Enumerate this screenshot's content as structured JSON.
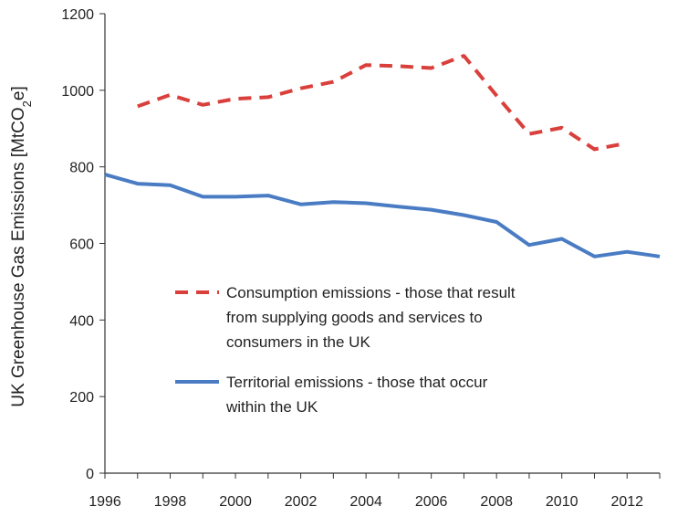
{
  "chart_data": {
    "type": "line",
    "ylabel": "UK Greenhouse Gas Emissions [MtCO",
    "ylabel_sub": "2",
    "ylabel_tail": "e]",
    "xlim": [
      1996,
      2013
    ],
    "ylim": [
      0,
      1200
    ],
    "xticks": [
      "1996",
      "1998",
      "2000",
      "2002",
      "2004",
      "2006",
      "2008",
      "2010",
      "2012"
    ],
    "yticks": [
      "0",
      "200",
      "400",
      "600",
      "800",
      "1000",
      "1200"
    ],
    "grid": false,
    "legend_position": "center",
    "series": [
      {
        "name": "Consumption emissions - those that result from supplying goods and services to consumers in the UK",
        "legend_lines": [
          "Consumption emissions - those that result",
          "from supplying goods and services to",
          "consumers in the UK"
        ],
        "style": "dashed",
        "color": "#d9403c",
        "x": [
          1997,
          1998,
          1999,
          2000,
          2001,
          2002,
          2003,
          2004,
          2005,
          2006,
          2007,
          2008,
          2009,
          2010,
          2011,
          2012
        ],
        "y": [
          958,
          988,
          962,
          978,
          982,
          1005,
          1022,
          1066,
          1063,
          1058,
          1090,
          986,
          886,
          902,
          846,
          862
        ]
      },
      {
        "name": "Territorial emissions - those that occur within the UK",
        "legend_lines": [
          "Territorial emissions - those that occur",
          "within the UK"
        ],
        "style": "solid",
        "color": "#4a7cc4",
        "x": [
          1996,
          1997,
          1998,
          1999,
          2000,
          2001,
          2002,
          2003,
          2004,
          2005,
          2006,
          2007,
          2008,
          2009,
          2010,
          2011,
          2012,
          2013
        ],
        "y": [
          780,
          756,
          752,
          722,
          722,
          725,
          702,
          708,
          705,
          696,
          688,
          674,
          656,
          596,
          612,
          566,
          578,
          566
        ]
      }
    ]
  }
}
